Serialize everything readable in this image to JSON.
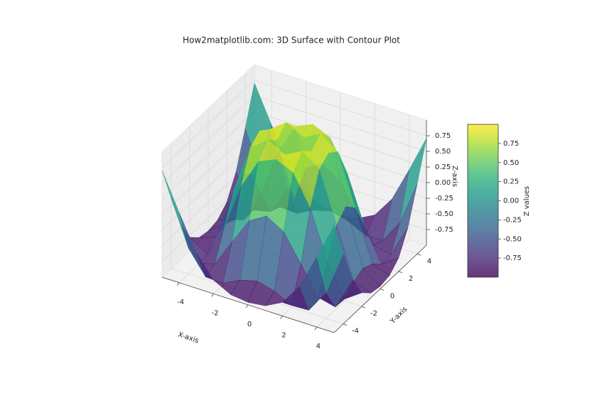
{
  "chart_data": {
    "type": "surface3d",
    "title": "How2matplotlib.com: 3D Surface with Contour Plot",
    "xlabel": "X-axis",
    "ylabel": "Y-axis",
    "zlabel": "Z-axis",
    "colorbar_label": "Z values",
    "cmap": "viridis",
    "alpha": 0.8,
    "x": [
      -5,
      -4,
      -3,
      -2,
      -1,
      0,
      1,
      2,
      3,
      4,
      5
    ],
    "y": [
      -5,
      -4,
      -3,
      -2,
      -1,
      0,
      1,
      2,
      3,
      4,
      5
    ],
    "z": [
      [
        0.709,
        0.12,
        -0.437,
        -0.782,
        -0.926,
        -0.959,
        -0.926,
        -0.782,
        -0.437,
        0.12,
        0.709
      ],
      [
        0.12,
        -0.586,
        -0.959,
        -0.971,
        -0.831,
        -0.757,
        -0.831,
        -0.971,
        -0.959,
        -0.586,
        0.12
      ],
      [
        -0.437,
        -0.959,
        -0.892,
        -0.448,
        -0.02,
        0.141,
        -0.02,
        -0.448,
        -0.892,
        -0.959,
        -0.437
      ],
      [
        -0.782,
        -0.971,
        -0.448,
        0.308,
        0.787,
        0.909,
        0.787,
        0.308,
        -0.448,
        -0.971,
        -0.782
      ],
      [
        -0.926,
        -0.831,
        -0.02,
        0.787,
        0.988,
        0.841,
        0.988,
        0.787,
        -0.02,
        -0.831,
        -0.926
      ],
      [
        -0.959,
        -0.757,
        0.141,
        0.909,
        0.841,
        0,
        0.841,
        0.909,
        0.141,
        -0.757,
        -0.959
      ],
      [
        -0.926,
        -0.831,
        -0.02,
        0.787,
        0.988,
        0.841,
        0.988,
        0.787,
        -0.02,
        -0.831,
        -0.926
      ],
      [
        -0.782,
        -0.971,
        -0.448,
        0.308,
        0.787,
        0.909,
        0.787,
        0.308,
        -0.448,
        -0.971,
        -0.782
      ],
      [
        -0.437,
        -0.959,
        -0.892,
        -0.448,
        -0.02,
        0.141,
        -0.02,
        -0.448,
        -0.892,
        -0.959,
        -0.437
      ],
      [
        0.12,
        -0.586,
        -0.959,
        -0.971,
        -0.831,
        -0.757,
        -0.831,
        -0.971,
        -0.959,
        -0.586,
        0.12
      ],
      [
        0.709,
        0.12,
        -0.437,
        -0.782,
        -0.926,
        -0.959,
        -0.926,
        -0.782,
        -0.437,
        0.12,
        0.709
      ]
    ],
    "xlim": [
      -5,
      5
    ],
    "ylim": [
      -5,
      5
    ],
    "zlim": [
      -1,
      1
    ],
    "xticks": [
      -4,
      -2,
      0,
      2,
      4
    ],
    "yticks": [
      -4,
      -2,
      0,
      2,
      4
    ],
    "zticks": [
      -0.75,
      {
        "value": -0.5,
        "label": "-0.50"
      },
      -0.25,
      {
        "value": 0,
        "label": "0.00"
      },
      0.25,
      {
        "value": 0.5,
        "label": "0.50"
      },
      0.75
    ],
    "clim": [
      -1,
      1
    ],
    "cbar_ticks": [
      -0.75,
      {
        "value": -0.5,
        "label": "-0.50"
      },
      -0.25,
      {
        "value": 0,
        "label": "0.00"
      },
      0.25,
      {
        "value": 0.5,
        "label": "0.50"
      },
      0.75
    ],
    "grid": true
  }
}
